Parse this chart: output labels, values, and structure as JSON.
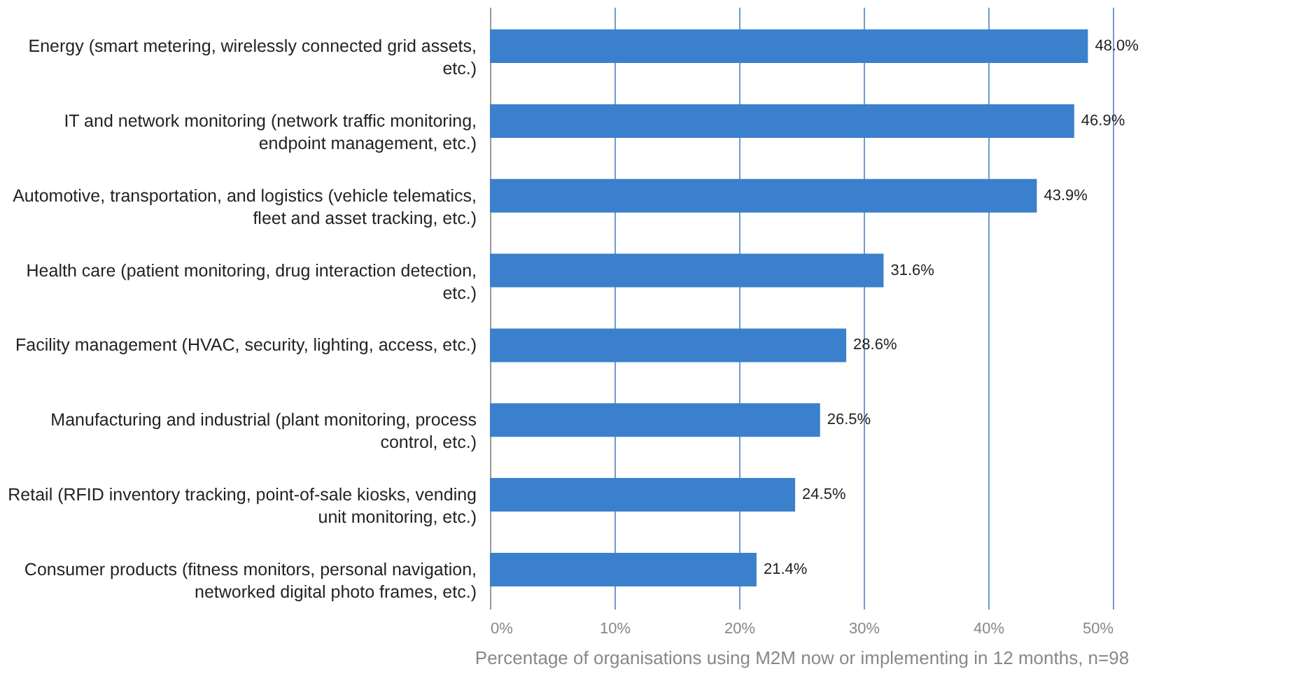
{
  "chart_data": {
    "type": "bar",
    "orientation": "horizontal",
    "categories": [
      "Energy (smart metering, wirelessly connected grid assets, etc.)",
      "IT and network monitoring (network traffic monitoring, endpoint management, etc.)",
      "Automotive, transportation, and logistics (vehicle telematics, fleet and asset tracking, etc.)",
      "Health care (patient monitoring, drug interaction detection, etc.)",
      "Facility management (HVAC, security, lighting, access, etc.)",
      "Manufacturing and industrial (plant monitoring, process control, etc.)",
      "Retail (RFID inventory tracking, point-of-sale kiosks, vending unit monitoring, etc.)",
      "Consumer products (fitness monitors, personal navigation, networked digital photo frames, etc.)"
    ],
    "values": [
      48.0,
      46.9,
      43.9,
      31.6,
      28.6,
      26.5,
      24.5,
      21.4
    ],
    "value_labels": [
      "48.0%",
      "46.9%",
      "43.9%",
      "31.6%",
      "28.6%",
      "26.5%",
      "24.5%",
      "21.4%"
    ],
    "color": "#3b80cc",
    "xlabel": "Percentage of organisations using M2M now or implementing in 12 months, n=98",
    "xlim": [
      0,
      50
    ],
    "xticks": [
      {
        "value": 0,
        "label": "0%"
      },
      {
        "value": 10,
        "label": "10%"
      },
      {
        "value": 20,
        "label": "20%"
      },
      {
        "value": 30,
        "label": "30%"
      },
      {
        "value": 40,
        "label": "40%"
      },
      {
        "value": 50,
        "label": "50%"
      }
    ],
    "grid": "x"
  }
}
